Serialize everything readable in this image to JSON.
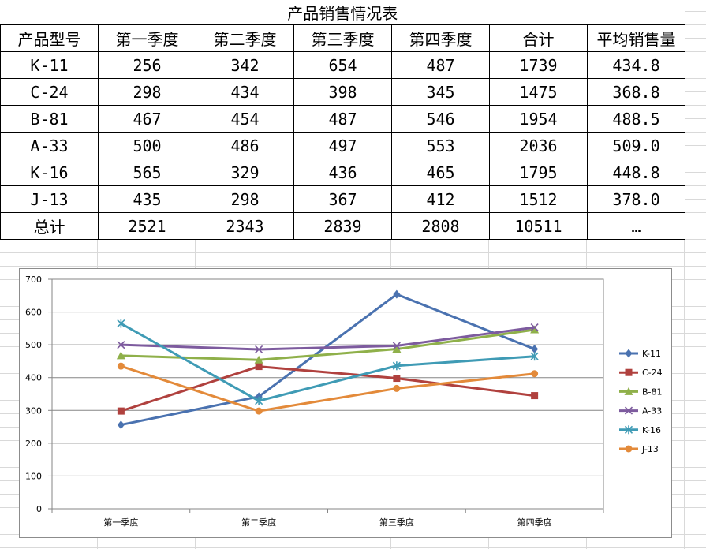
{
  "table": {
    "title": "产品销售情况表",
    "headers": [
      "产品型号",
      "第一季度",
      "第二季度",
      "第三季度",
      "第四季度",
      "合计",
      "平均销售量"
    ],
    "rows": [
      [
        "K-11",
        "256",
        "342",
        "654",
        "487",
        "1739",
        "434.8"
      ],
      [
        "C-24",
        "298",
        "434",
        "398",
        "345",
        "1475",
        "368.8"
      ],
      [
        "B-81",
        "467",
        "454",
        "487",
        "546",
        "1954",
        "488.5"
      ],
      [
        "A-33",
        "500",
        "486",
        "497",
        "553",
        "2036",
        "509.0"
      ],
      [
        "K-16",
        "565",
        "329",
        "436",
        "465",
        "1795",
        "448.8"
      ],
      [
        "J-13",
        "435",
        "298",
        "367",
        "412",
        "1512",
        "378.0"
      ],
      [
        "总计",
        "2521",
        "2343",
        "2839",
        "2808",
        "10511",
        "…"
      ]
    ]
  },
  "chart_data": {
    "type": "line",
    "title": "",
    "xlabel": "",
    "ylabel": "",
    "categories": [
      "第一季度",
      "第二季度",
      "第三季度",
      "第四季度"
    ],
    "ylim": [
      0,
      700
    ],
    "yticks": [
      0,
      100,
      200,
      300,
      400,
      500,
      600,
      700
    ],
    "grid": true,
    "legend_position": "right",
    "series": [
      {
        "name": "K-11",
        "values": [
          256,
          342,
          654,
          487
        ],
        "color": "#4a72b0",
        "marker": "diamond"
      },
      {
        "name": "C-24",
        "values": [
          298,
          434,
          398,
          345
        ],
        "color": "#b0413e",
        "marker": "square"
      },
      {
        "name": "B-81",
        "values": [
          467,
          454,
          487,
          546
        ],
        "color": "#8fb04a",
        "marker": "triangle"
      },
      {
        "name": "A-33",
        "values": [
          500,
          486,
          497,
          553
        ],
        "color": "#7d5b9e",
        "marker": "x"
      },
      {
        "name": "K-16",
        "values": [
          565,
          329,
          436,
          465
        ],
        "color": "#3f9bb5",
        "marker": "star"
      },
      {
        "name": "J-13",
        "values": [
          435,
          298,
          367,
          412
        ],
        "color": "#e38a3a",
        "marker": "circle"
      }
    ]
  }
}
